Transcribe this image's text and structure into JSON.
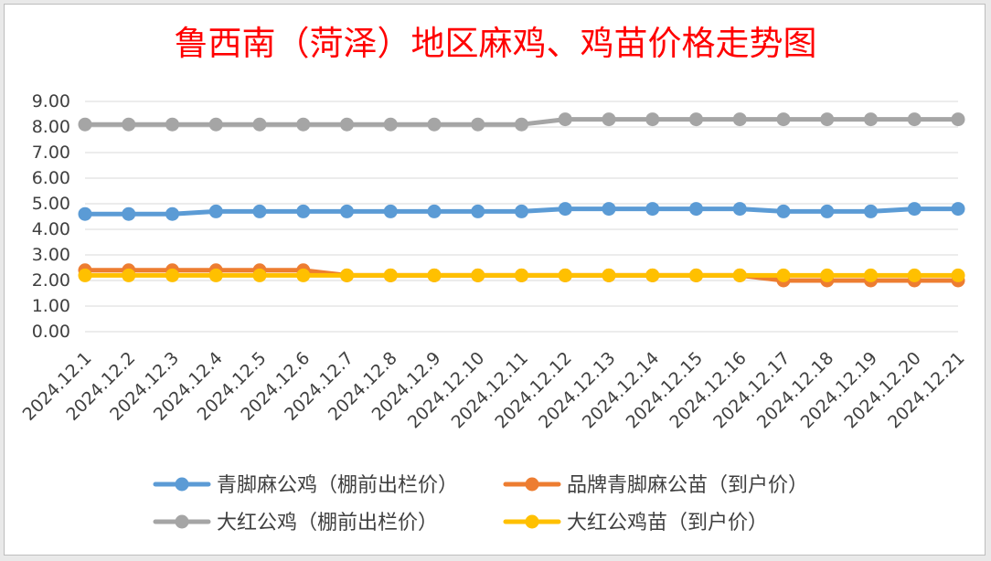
{
  "chart_data": {
    "type": "line",
    "title": "鲁西南（菏泽）地区麻鸡、鸡苗价格走势图",
    "categories": [
      "2024.12.1",
      "2024.12.2",
      "2024.12.3",
      "2024.12.4",
      "2024.12.5",
      "2024.12.6",
      "2024.12.7",
      "2024.12.8",
      "2024.12.9",
      "2024.12.10",
      "2024.12.11",
      "2024.12.12",
      "2024.12.13",
      "2024.12.14",
      "2024.12.15",
      "2024.12.16",
      "2024.12.17",
      "2024.12.18",
      "2024.12.19",
      "2024.12.20",
      "2024.12.21"
    ],
    "ylim": [
      0,
      9
    ],
    "yticks": [
      "0.00",
      "1.00",
      "2.00",
      "3.00",
      "4.00",
      "5.00",
      "6.00",
      "7.00",
      "8.00",
      "9.00"
    ],
    "grid": true,
    "legend_position": "bottom",
    "series": [
      {
        "name": "青脚麻公鸡（棚前出栏价）",
        "color": "#5b9bd5",
        "values": [
          4.6,
          4.6,
          4.6,
          4.7,
          4.7,
          4.7,
          4.7,
          4.7,
          4.7,
          4.7,
          4.7,
          4.8,
          4.8,
          4.8,
          4.8,
          4.8,
          4.7,
          4.7,
          4.7,
          4.8,
          4.8
        ]
      },
      {
        "name": "品牌青脚麻公苗（到户价）",
        "color": "#ed7d31",
        "values": [
          2.4,
          2.4,
          2.4,
          2.4,
          2.4,
          2.4,
          2.2,
          2.2,
          2.2,
          2.2,
          2.2,
          2.2,
          2.2,
          2.2,
          2.2,
          2.2,
          2.0,
          2.0,
          2.0,
          2.0,
          2.0
        ]
      },
      {
        "name": "大红公鸡（棚前出栏价）",
        "color": "#a5a5a5",
        "values": [
          8.1,
          8.1,
          8.1,
          8.1,
          8.1,
          8.1,
          8.1,
          8.1,
          8.1,
          8.1,
          8.1,
          8.3,
          8.3,
          8.3,
          8.3,
          8.3,
          8.3,
          8.3,
          8.3,
          8.3,
          8.3
        ]
      },
      {
        "name": "大红公鸡苗（到户价）",
        "color": "#ffc000",
        "values": [
          2.2,
          2.2,
          2.2,
          2.2,
          2.2,
          2.2,
          2.2,
          2.2,
          2.2,
          2.2,
          2.2,
          2.2,
          2.2,
          2.2,
          2.2,
          2.2,
          2.2,
          2.2,
          2.2,
          2.2,
          2.2
        ]
      }
    ],
    "title_color": "#ff0000"
  }
}
